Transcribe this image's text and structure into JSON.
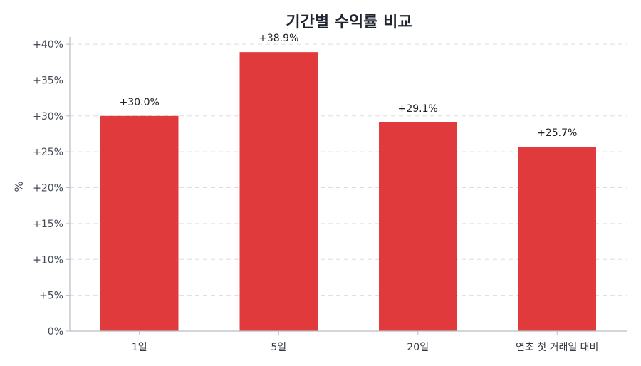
{
  "chart_data": {
    "type": "bar",
    "title": "기간별 수익률 비교",
    "ylabel": "%",
    "xlabel": "",
    "categories": [
      "1일",
      "5일",
      "20일",
      "연초 첫 거래일 대비"
    ],
    "values": [
      30.0,
      38.9,
      29.1,
      25.7
    ],
    "data_labels": [
      "+30.0%",
      "+38.9%",
      "+29.1%",
      "+25.7%"
    ],
    "ylim": [
      0,
      41
    ],
    "yticks": [
      0,
      5,
      10,
      15,
      20,
      25,
      30,
      35,
      40
    ],
    "ytick_labels": [
      "0%",
      "+5%",
      "+10%",
      "+15%",
      "+20%",
      "+25%",
      "+30%",
      "+35%",
      "+40%"
    ],
    "grid": true,
    "bar_color": "#e03a3c",
    "grid_color": "#d9dde3",
    "axis_color": "#b8bcc4"
  }
}
